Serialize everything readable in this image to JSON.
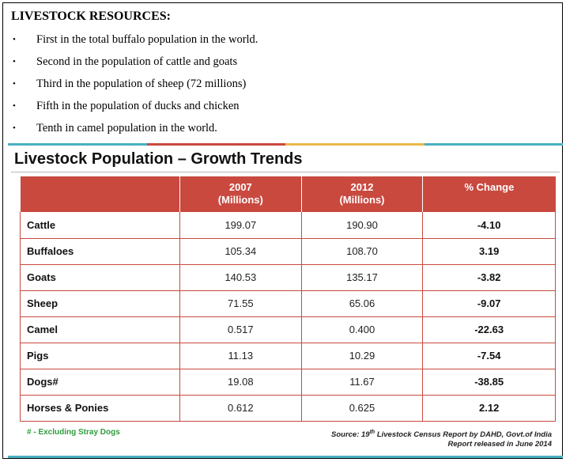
{
  "heading": "LIVESTOCK RESOURCES:",
  "bullet_glyph": "•",
  "bullets": [
    "First in the total buffalo population in the world.",
    "Second in the population of cattle and goats",
    "Third in the population of sheep (72 millions)",
    "Fifth in the population of ducks and chicken",
    "Tenth in camel population in the world."
  ],
  "panel": {
    "title": "Livestock Population – Growth Trends",
    "topbar_colors": [
      "#4ab0c2",
      "#c9493f",
      "#e8b94a",
      "#4ab0c2"
    ],
    "accent_color": "#c9493f",
    "footnote": "# - Excluding Stray Dogs",
    "source": {
      "prefix": "Source: 19",
      "sup": "th",
      "suffix": " Livestock Census Report by DAHD, Govt.of India",
      "line2": "Report released in June 2014"
    }
  },
  "table": {
    "headers": [
      {
        "line1": "",
        "line2": ""
      },
      {
        "line1": "2007",
        "line2": "(Millions)"
      },
      {
        "line1": "2012",
        "line2": "(Millions)"
      },
      {
        "line1": "% Change",
        "line2": ""
      }
    ],
    "rows": [
      {
        "animal": "Cattle",
        "y2007": "199.07",
        "y2012": "190.90",
        "change": "-4.10"
      },
      {
        "animal": "Buffaloes",
        "y2007": "105.34",
        "y2012": "108.70",
        "change": "3.19"
      },
      {
        "animal": "Goats",
        "y2007": "140.53",
        "y2012": "135.17",
        "change": "-3.82"
      },
      {
        "animal": "Sheep",
        "y2007": "71.55",
        "y2012": "65.06",
        "change": "-9.07"
      },
      {
        "animal": "Camel",
        "y2007": "0.517",
        "y2012": "0.400",
        "change": "-22.63"
      },
      {
        "animal": "Pigs",
        "y2007": "11.13",
        "y2012": "10.29",
        "change": "-7.54"
      },
      {
        "animal": "Dogs#",
        "y2007": "19.08",
        "y2012": "11.67",
        "change": "-38.85"
      },
      {
        "animal": "Horses & Ponies",
        "y2007": "0.612",
        "y2012": "0.625",
        "change": "2.12"
      }
    ]
  }
}
